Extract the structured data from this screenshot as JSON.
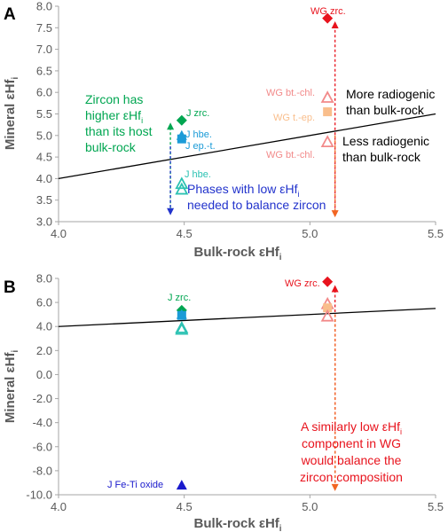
{
  "chart_data": [
    {
      "type": "scatter",
      "panel_label": "A",
      "xlabel": "Bulk-rock εHf",
      "xlabel_sub": "i",
      "ylabel": "Mineral εHf",
      "ylabel_sub": "i",
      "xlim": [
        4.0,
        5.5
      ],
      "ylim": [
        3.0,
        8.0
      ],
      "x_ticks": [
        "4.0",
        "4.5",
        "5.0",
        "5.5"
      ],
      "y_ticks": [
        "3.0",
        "3.5",
        "4.0",
        "4.5",
        "5.0",
        "5.5",
        "6.0",
        "6.5",
        "7.0",
        "7.5",
        "8.0"
      ],
      "grid": false,
      "reference_line": {
        "x": [
          4.0,
          5.5
        ],
        "y": [
          4.0,
          5.5
        ]
      },
      "points": [
        {
          "x": 4.49,
          "y": 5.35,
          "marker": "diamond",
          "color": "#00a651",
          "filled": true,
          "label": "J zrc."
        },
        {
          "x": 4.49,
          "y": 5.0,
          "marker": "triangle",
          "color": "#1b9bd7",
          "filled": true,
          "label": "J hbe."
        },
        {
          "x": 4.49,
          "y": 4.92,
          "marker": "square",
          "color": "#1b9bd7",
          "filled": true,
          "label": "J ep.-t."
        },
        {
          "x": 4.49,
          "y": 3.88,
          "marker": "triangle",
          "color": "#2dc2b3",
          "filled": false,
          "label": "J hbe."
        },
        {
          "x": 4.49,
          "y": 3.75,
          "marker": "triangle",
          "color": "#2dc2b3",
          "filled": false,
          "label": ""
        },
        {
          "x": 5.07,
          "y": 7.72,
          "marker": "diamond",
          "color": "#e8131d",
          "filled": true,
          "label": "WG zrc."
        },
        {
          "x": 5.07,
          "y": 5.88,
          "marker": "triangle",
          "color": "#f28a8a",
          "filled": false,
          "label": "WG bt.-chl."
        },
        {
          "x": 5.07,
          "y": 5.55,
          "marker": "square",
          "color": "#f9be8c",
          "filled": true,
          "label": "WG t.-ep."
        },
        {
          "x": 5.07,
          "y": 4.85,
          "marker": "triangle",
          "color": "#f28a8a",
          "filled": false,
          "label": "WG bt.-chl."
        }
      ],
      "arrows": [
        {
          "x": 4.445,
          "y_from": 3.2,
          "y_to": 5.3,
          "color": "#00a651",
          "style": "dashed",
          "head": "up"
        },
        {
          "x": 4.445,
          "y_from": 4.75,
          "y_to": 3.15,
          "color": "#2233cc",
          "style": "dashed",
          "head": "down"
        },
        {
          "x": 5.1,
          "y_from": 3.2,
          "y_to": 7.65,
          "color": "#e8131d",
          "style": "dashed",
          "head": "up"
        },
        {
          "x": 5.1,
          "y_from": 5.0,
          "y_to": 3.1,
          "color": "#f26522",
          "style": "dashed",
          "head": "down"
        }
      ],
      "annotations": [
        {
          "lines": [
            "Zircon has",
            "higher εHf",
            "than its host",
            "bulk-rock"
          ],
          "sub_line": 1,
          "sub": "i",
          "color": "#00a651"
        },
        {
          "lines": [
            "Phases with low εHf",
            "needed to balance zircon"
          ],
          "sub_line": 0,
          "sub": "i",
          "color": "#2233cc"
        },
        {
          "lines": [
            "More radiogenic",
            "than bulk-rock"
          ],
          "color": "#000000"
        },
        {
          "lines": [
            "Less radiogenic",
            "than bulk-rock"
          ],
          "color": "#000000"
        }
      ]
    },
    {
      "type": "scatter",
      "panel_label": "B",
      "xlabel": "Bulk-rock εHf",
      "xlabel_sub": "i",
      "ylabel": "Mineral εHf",
      "ylabel_sub": "i",
      "xlim": [
        4.0,
        5.5
      ],
      "ylim": [
        -10.0,
        8.0
      ],
      "x_ticks": [
        "4.0",
        "4.5",
        "5.0",
        "5.5"
      ],
      "y_ticks": [
        "-10.0",
        "-8.0",
        "-6.0",
        "-4.0",
        "-2.0",
        "0.0",
        "2.0",
        "4.0",
        "6.0",
        "8.0"
      ],
      "grid": false,
      "reference_line": {
        "x": [
          4.0,
          5.5
        ],
        "y": [
          4.0,
          5.5
        ]
      },
      "points": [
        {
          "x": 4.49,
          "y": 5.35,
          "marker": "diamond",
          "color": "#00a651",
          "filled": true,
          "label": "J zrc."
        },
        {
          "x": 4.49,
          "y": 5.0,
          "marker": "triangle",
          "color": "#1b9bd7",
          "filled": true,
          "label": ""
        },
        {
          "x": 4.49,
          "y": 4.92,
          "marker": "square",
          "color": "#1b9bd7",
          "filled": true,
          "label": ""
        },
        {
          "x": 4.49,
          "y": 3.88,
          "marker": "triangle",
          "color": "#2dc2b3",
          "filled": false,
          "label": ""
        },
        {
          "x": 4.49,
          "y": 3.75,
          "marker": "triangle",
          "color": "#2dc2b3",
          "filled": false,
          "label": ""
        },
        {
          "x": 4.49,
          "y": -9.2,
          "marker": "triangle",
          "color": "#1a1acc",
          "filled": true,
          "label": "J Fe-Ti oxide"
        },
        {
          "x": 5.07,
          "y": 7.72,
          "marker": "diamond",
          "color": "#e8131d",
          "filled": true,
          "label": "WG zrc."
        },
        {
          "x": 5.07,
          "y": 5.88,
          "marker": "triangle",
          "color": "#f28a8a",
          "filled": false,
          "label": ""
        },
        {
          "x": 5.07,
          "y": 5.55,
          "marker": "square",
          "color": "#f9be8c",
          "filled": true,
          "label": ""
        },
        {
          "x": 5.07,
          "y": 4.85,
          "marker": "triangle",
          "color": "#f28a8a",
          "filled": false,
          "label": ""
        }
      ],
      "arrows": [
        {
          "x": 5.1,
          "y_from": -9.0,
          "y_to": 7.45,
          "color": "#e8131d",
          "style": "dashed",
          "head": "up"
        },
        {
          "x": 5.1,
          "y_from": 5.0,
          "y_to": -9.7,
          "color": "#f26522",
          "style": "dashed",
          "head": "down"
        }
      ],
      "annotations": [
        {
          "lines": [
            "A similarly low εHf",
            "component in WG",
            "would balance the",
            "zircon composition"
          ],
          "sub_line": 0,
          "sub": "i",
          "color": "#e8131d"
        }
      ]
    }
  ]
}
